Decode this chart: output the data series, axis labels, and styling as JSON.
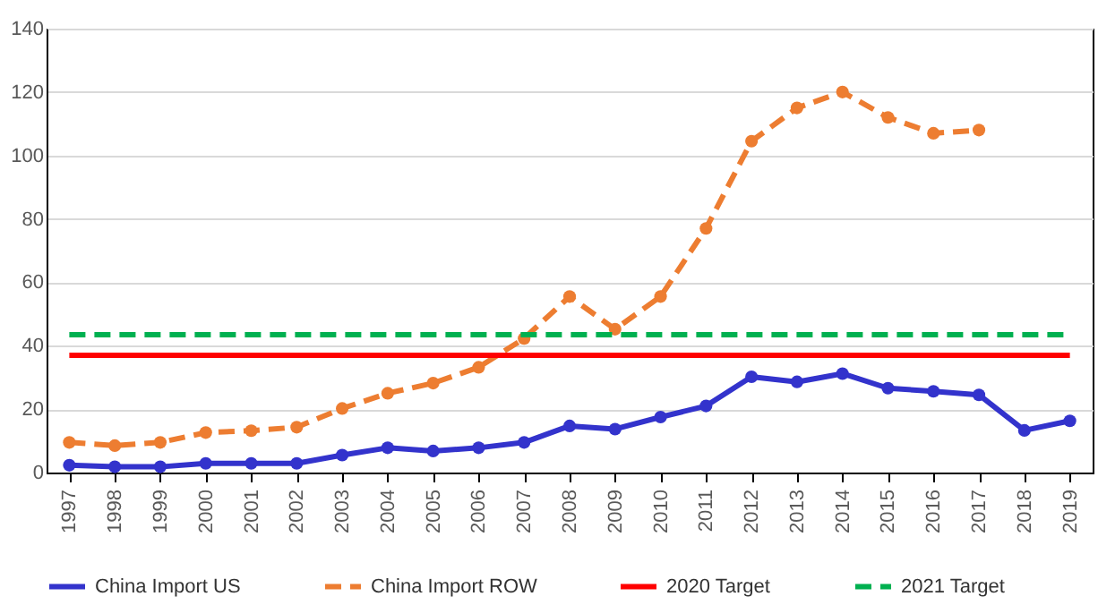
{
  "chart_data": {
    "type": "line",
    "categories": [
      "1997",
      "1998",
      "1999",
      "2000",
      "2001",
      "2002",
      "2003",
      "2004",
      "2005",
      "2006",
      "2007",
      "2008",
      "2009",
      "2010",
      "2011",
      "2012",
      "2013",
      "2014",
      "2015",
      "2016",
      "2017",
      "2018",
      "2019"
    ],
    "series": [
      {
        "name": "China Import US",
        "color": "#3333cc",
        "marker": "circle",
        "line_style": "solid",
        "values": [
          2.3,
          1.8,
          1.8,
          2.9,
          2.9,
          2.9,
          5.5,
          7.8,
          6.8,
          7.8,
          9.5,
          14.7,
          13.7,
          17.5,
          21,
          30.2,
          28.6,
          31.2,
          26.6,
          25.6,
          24.5,
          13.3,
          16.3
        ]
      },
      {
        "name": "China Import ROW",
        "color": "#ed7d31",
        "marker": "circle",
        "line_style": "dashed",
        "values": [
          9.5,
          8.5,
          9.5,
          12.6,
          13.2,
          14.3,
          20.2,
          25,
          28.2,
          33.2,
          42.3,
          55.5,
          45.2,
          55.5,
          77,
          104.5,
          115,
          120,
          112,
          107,
          108,
          null,
          null
        ]
      },
      {
        "name": "2020 Target",
        "color": "#ff0000",
        "marker": "none",
        "line_style": "solid",
        "values": [
          37,
          37,
          37,
          37,
          37,
          37,
          37,
          37,
          37,
          37,
          37,
          37,
          37,
          37,
          37,
          37,
          37,
          37,
          37,
          37,
          37,
          37,
          37
        ]
      },
      {
        "name": "2021 Target",
        "color": "#00b050",
        "marker": "none",
        "line_style": "dashed",
        "values": [
          43.5,
          43.5,
          43.5,
          43.5,
          43.5,
          43.5,
          43.5,
          43.5,
          43.5,
          43.5,
          43.5,
          43.5,
          43.5,
          43.5,
          43.5,
          43.5,
          43.5,
          43.5,
          43.5,
          43.5,
          43.5,
          43.5,
          43.5
        ]
      }
    ],
    "ylim": [
      0,
      140
    ],
    "yticks": [
      0,
      20,
      40,
      60,
      80,
      100,
      120,
      140
    ],
    "grid": "y",
    "legend": "bottom"
  }
}
